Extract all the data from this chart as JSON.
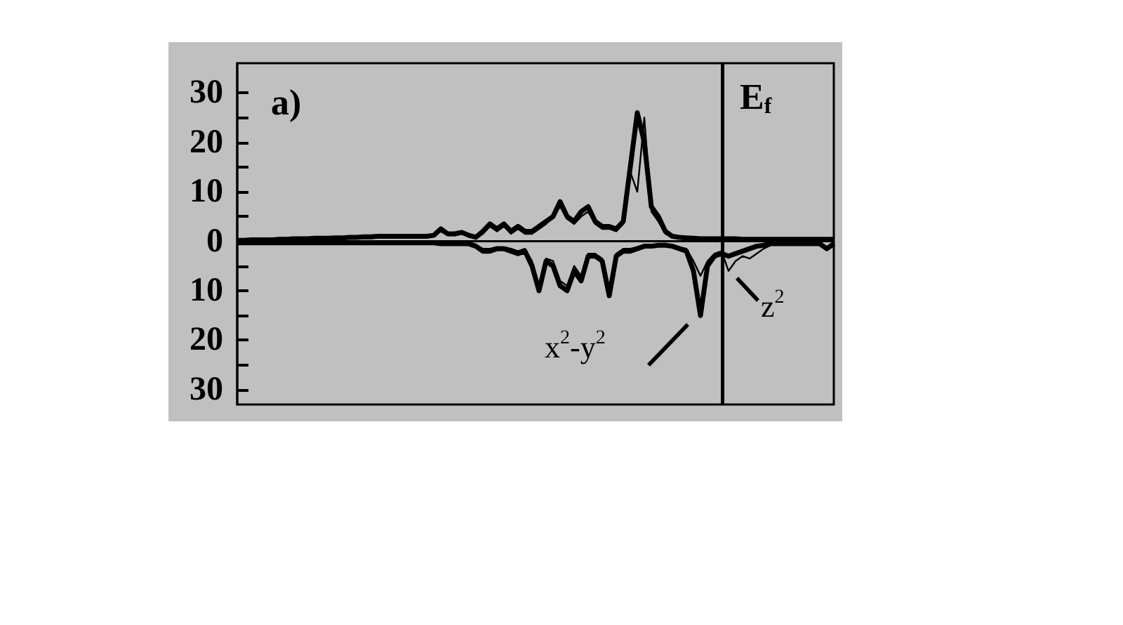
{
  "chart_data": {
    "type": "line",
    "categories": [
      null,
      null,
      null,
      null,
      null,
      null,
      null,
      null,
      null,
      null,
      null,
      null,
      null,
      null,
      null,
      null,
      null,
      null,
      null,
      null,
      null,
      null,
      null,
      null,
      null,
      null,
      null,
      null,
      null,
      null,
      null,
      null,
      null,
      null,
      null,
      null,
      null,
      null,
      null,
      null,
      null,
      null,
      null,
      null,
      null,
      null,
      null,
      null,
      null,
      null,
      null,
      null,
      null,
      null,
      null,
      null,
      null,
      null,
      null,
      null,
      null,
      null,
      null,
      null,
      null,
      null,
      null,
      null,
      null,
      null,
      null,
      null,
      null,
      null,
      null,
      null,
      null,
      null,
      null,
      null,
      null,
      null,
      null,
      null,
      null,
      null
    ],
    "series": [
      {
        "color": "#000000",
        "values": [
          0.2,
          0.2,
          0.3,
          0.3,
          0.3,
          0.3,
          0.4,
          0.4,
          0.5,
          0.5,
          0.5,
          0.6,
          0.6,
          0.6,
          0.7,
          0.7,
          0.8,
          0.8,
          0.9,
          0.9,
          1,
          1,
          1,
          1,
          1,
          1,
          1,
          1,
          1.2,
          2.5,
          1.5,
          1.5,
          1.8,
          1.2,
          0.8,
          2,
          3.5,
          2.5,
          3.5,
          2,
          3,
          2,
          2,
          3,
          4,
          5,
          8,
          5,
          4,
          6,
          7,
          4,
          3,
          3,
          2.5,
          4,
          15,
          26,
          20,
          7,
          5,
          2,
          1,
          0.8,
          0.7,
          0.6,
          0.5,
          0.5,
          0.5,
          0.5,
          0.5,
          0.5,
          0.4,
          0.4,
          0.4,
          0.4,
          0.4,
          0.4,
          0.4,
          0.4,
          0.4,
          0.4,
          0.4,
          0.4,
          0.4,
          0.4
        ]
      },
      {
        "color": "#000000",
        "values": [
          -0.3,
          -0.3,
          -0.3,
          -0.3,
          -0.3,
          -0.3,
          -0.3,
          -0.3,
          -0.3,
          -0.3,
          -0.3,
          -0.3,
          -0.3,
          -0.3,
          -0.3,
          -0.3,
          -0.3,
          -0.3,
          -0.3,
          -0.3,
          -0.3,
          -0.3,
          -0.3,
          -0.3,
          -0.3,
          -0.3,
          -0.3,
          -0.3,
          -0.3,
          -0.5,
          -0.5,
          -0.5,
          -0.5,
          -0.5,
          -1,
          -2,
          -2,
          -1.5,
          -1.5,
          -2,
          -2.5,
          -2,
          -5,
          -10,
          -4,
          -5,
          -9,
          -10,
          -6,
          -8,
          -3,
          -3,
          -4,
          -11,
          -3,
          -2,
          -2,
          -1.5,
          -1,
          -1,
          -0.8,
          -0.8,
          -1,
          -1.5,
          -2,
          -6,
          -15,
          -5,
          -3,
          -2.5,
          -3,
          -2.5,
          -2,
          -1.5,
          -1,
          -0.8,
          -0.5,
          -0.5,
          -0.5,
          -0.5,
          -0.5,
          -0.5,
          -0.5,
          -0.5,
          -1.5,
          -0.5
        ]
      },
      {
        "color": "#000000",
        "values": [
          0.2,
          0.2,
          0.2,
          0.2,
          0.3,
          0.3,
          0.3,
          0.3,
          0.4,
          0.4,
          0.4,
          0.4,
          0.5,
          0.5,
          0.5,
          0.5,
          0.6,
          0.6,
          0.6,
          0.6,
          0.7,
          0.7,
          0.7,
          0.7,
          0.8,
          0.8,
          0.8,
          0.8,
          1,
          2,
          1.2,
          1.2,
          1.5,
          1,
          0.7,
          1.5,
          3,
          2,
          3,
          1.5,
          2.5,
          1.5,
          1.5,
          2.5,
          3.5,
          5,
          7,
          4.5,
          3.5,
          5,
          6,
          3.5,
          2.5,
          2.5,
          2,
          3.5,
          14,
          10,
          25,
          6,
          4,
          1.5,
          0.8,
          0.6,
          0.5,
          0.5,
          0.4,
          0.4,
          0.4,
          0.4,
          0.4,
          0.4,
          0.3,
          0.3,
          0.3,
          0.3,
          0.3,
          0.3,
          0.3,
          0.3,
          0.3,
          0.3,
          0.3,
          0.3,
          0.3,
          0.3
        ]
      },
      {
        "color": "#000000",
        "values": [
          -0.2,
          -0.2,
          -0.2,
          -0.2,
          -0.2,
          -0.2,
          -0.2,
          -0.2,
          -0.2,
          -0.2,
          -0.2,
          -0.2,
          -0.2,
          -0.2,
          -0.2,
          -0.2,
          -0.2,
          -0.2,
          -0.2,
          -0.2,
          -0.2,
          -0.2,
          -0.2,
          -0.2,
          -0.2,
          -0.2,
          -0.2,
          -0.2,
          -0.2,
          -0.4,
          -0.4,
          -0.4,
          -0.4,
          -0.4,
          -0.8,
          -1.5,
          -1.5,
          -1.2,
          -1.2,
          -1.5,
          -2,
          -1.5,
          -4,
          -9,
          -3.5,
          -4,
          -8,
          -9,
          -5,
          -7,
          -2.5,
          -2.5,
          -3.5,
          -10,
          -2.5,
          -1.5,
          -1.5,
          -1.2,
          -0.8,
          -0.8,
          -0.6,
          -0.6,
          -0.8,
          -1.2,
          -1.5,
          -4,
          -7,
          -4,
          -2.5,
          -2,
          -6,
          -4,
          -3,
          -3.5,
          -2.5,
          -1.5,
          -0.8,
          -0.5,
          -0.5,
          -0.5,
          -0.5,
          -0.5,
          -0.5,
          -0.5,
          -1.2,
          -0.4
        ]
      }
    ],
    "ylim": [
      -33,
      36
    ],
    "yticks": [
      {
        "value": -30,
        "label": "30"
      },
      {
        "value": -25,
        "label": null
      },
      {
        "value": -20,
        "label": "20"
      },
      {
        "value": -15,
        "label": null
      },
      {
        "value": -10,
        "label": "10"
      },
      {
        "value": -5,
        "label": null
      },
      0,
      {
        "value": 5,
        "label": null
      },
      10,
      {
        "value": 15,
        "label": null
      },
      20,
      {
        "value": 25,
        "label": null
      },
      30
    ],
    "tick_labels": "y",
    "annotations": [
      "a)",
      "x$^{2}$-y$^{2}$",
      "z$^{2}$",
      "E$_{f}$"
    ]
  }
}
